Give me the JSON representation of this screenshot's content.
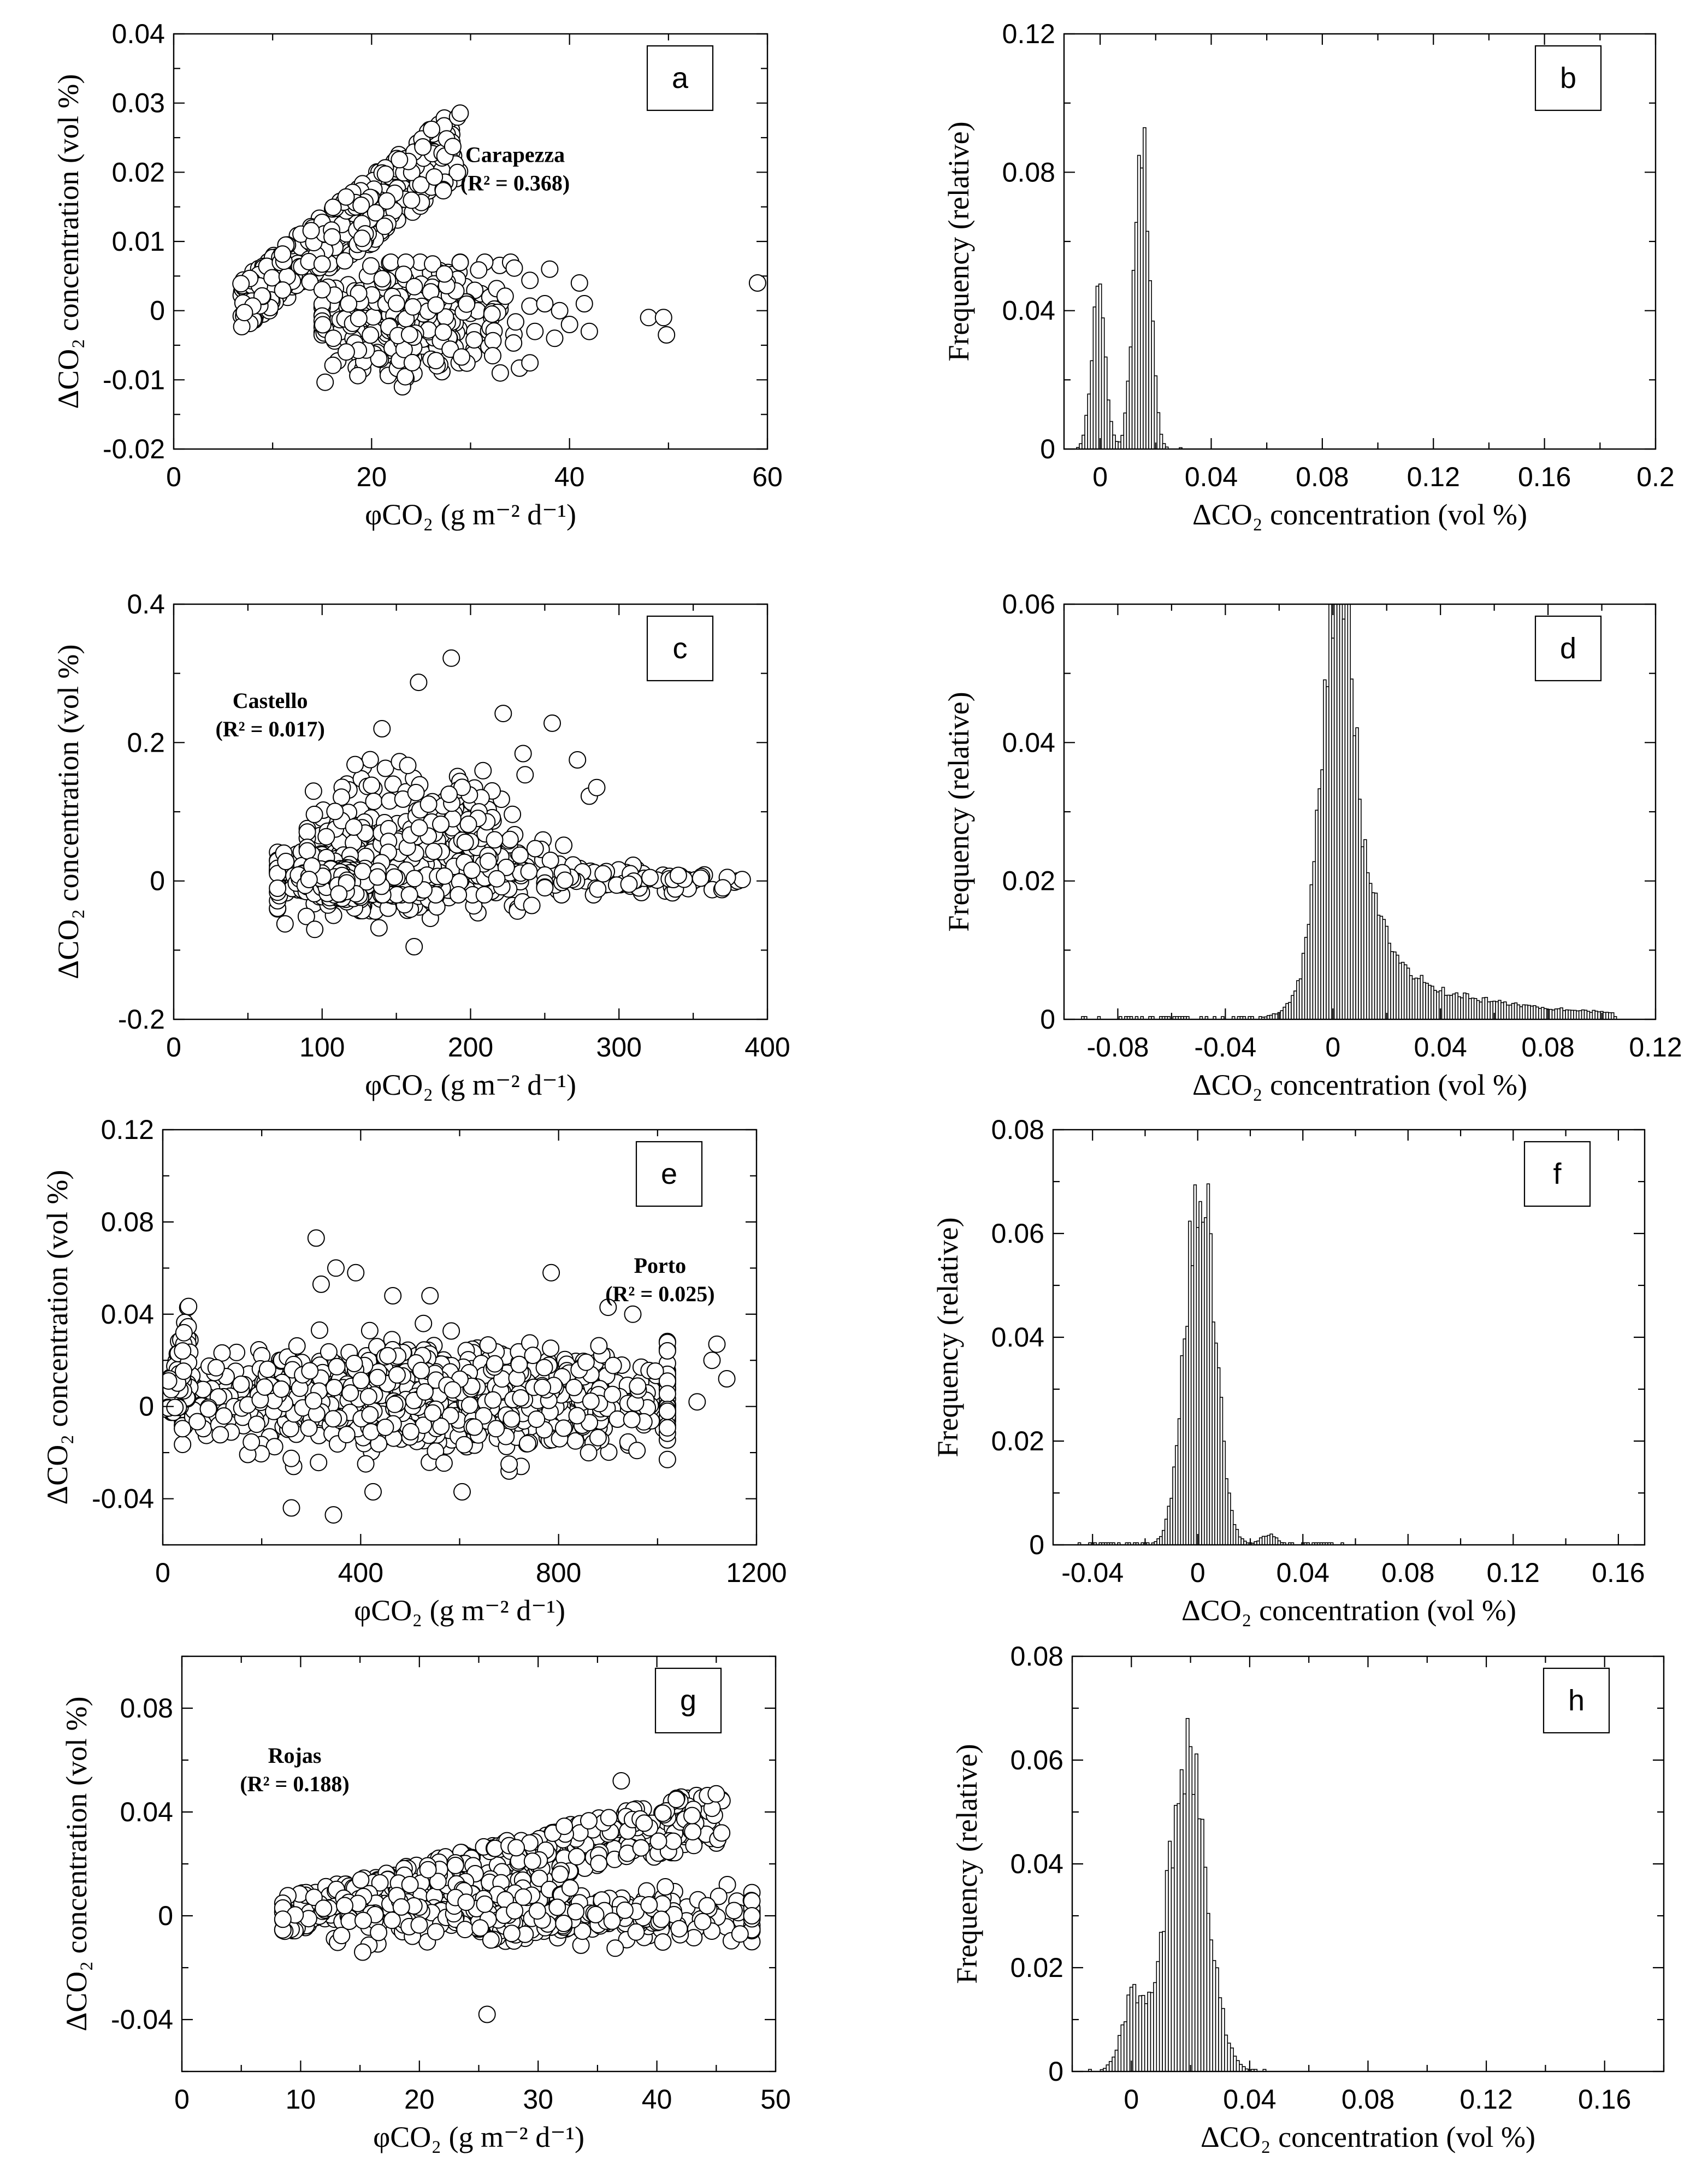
{
  "figure_colors": {
    "ink": "#000000",
    "marker_fill": "#ffffff",
    "bar_fill": "#ffffff"
  },
  "chart_data": [
    {
      "id": "a",
      "type": "scatter",
      "panel_label": "a",
      "xlabel": "φCO₂ (g m⁻² d⁻¹)",
      "ylabel": "ΔCO₂ concentration (vol %)",
      "xlim": [
        0,
        60
      ],
      "ylim": [
        -0.02,
        0.04
      ],
      "xticks": [
        0,
        20,
        40,
        60
      ],
      "xticklabels": [
        "0",
        "20",
        "40",
        "60"
      ],
      "yticks": [
        -0.02,
        -0.01,
        0,
        0.01,
        0.02,
        0.03,
        0.04
      ],
      "yticklabels": [
        "-0.02",
        "-0.01",
        "0",
        "0.01",
        "0.02",
        "0.03",
        "0.04"
      ],
      "xminor": 2,
      "yminor": 2,
      "annotation": {
        "site": "Carapezza",
        "r2": "(R² =  0.368)",
        "x": 34.5,
        "y": 0.0215
      },
      "clusters": [
        {
          "type": "band",
          "n": 360,
          "x0": 6.5,
          "x1": 29,
          "ylow0": -0.003,
          "ylow1": 0.018,
          "yhigh0": 0.004,
          "yhigh1": 0.03
        },
        {
          "type": "blob",
          "n": 330,
          "cx": 24,
          "cy": -0.001,
          "sx": 5,
          "sy": 0.004,
          "xmin": 15,
          "xmax": 36,
          "ymin": -0.011,
          "ymax": 0.007
        }
      ],
      "points": [
        [
          38,
          0.006
        ],
        [
          38.5,
          -0.004
        ],
        [
          39,
          0.0
        ],
        [
          40,
          -0.002
        ],
        [
          41,
          0.004
        ],
        [
          41.5,
          0.001
        ],
        [
          42,
          -0.003
        ],
        [
          48,
          -0.001
        ],
        [
          49.5,
          -0.001
        ],
        [
          49.8,
          -0.0035
        ],
        [
          59,
          0.004
        ],
        [
          33,
          -0.009
        ],
        [
          36.5,
          -0.003
        ],
        [
          37.5,
          0.001
        ]
      ]
    },
    {
      "id": "b",
      "type": "bar",
      "panel_label": "b",
      "xlabel": "ΔCO₂ concentration (vol %)",
      "ylabel": "Frequency (relative)",
      "xlim": [
        -0.013,
        0.2
      ],
      "ylim": [
        0,
        0.12
      ],
      "xticks": [
        0,
        0.04,
        0.08,
        0.12,
        0.16,
        0.2
      ],
      "xticklabels": [
        "0",
        "0.04",
        "0.08",
        "0.12",
        "0.16",
        "0.2"
      ],
      "yticks": [
        0,
        0.04,
        0.08,
        0.12
      ],
      "yticklabels": [
        "0",
        "0.04",
        "0.08",
        "0.12"
      ],
      "xminor": 2,
      "yminor": 2,
      "bin_width": 0.001,
      "peaks": [
        {
          "mu": -0.0005,
          "sigma": 0.0025,
          "amp": 0.044
        },
        {
          "mu": 0.015,
          "sigma": 0.0028,
          "amp": 0.095
        }
      ],
      "range": [
        -0.008,
        0.03
      ]
    },
    {
      "id": "c",
      "type": "scatter",
      "panel_label": "c",
      "xlabel": "φCO₂ (g m⁻² d⁻¹)",
      "ylabel": "ΔCO₂ concentration (vol %)",
      "xlim": [
        0,
        400
      ],
      "ylim": [
        -0.2,
        0.4
      ],
      "xticks": [
        0,
        100,
        200,
        300,
        400
      ],
      "xticklabels": [
        "0",
        "100",
        "200",
        "300",
        "400"
      ],
      "yticks": [
        -0.2,
        0,
        0.2,
        0.4
      ],
      "yticklabels": [
        "-0.2",
        "0",
        "0.2",
        "0.4"
      ],
      "xminor": 2,
      "yminor": 2,
      "annotation": {
        "site": "Castello",
        "r2": "(R² = 0.017)",
        "x": 65,
        "y": 0.25
      },
      "clusters": [
        {
          "type": "blob",
          "n": 500,
          "cx": 150,
          "cy": 0.01,
          "sx": 45,
          "sy": 0.025,
          "xmin": 70,
          "xmax": 300,
          "ymin": -0.07,
          "ymax": 0.08
        },
        {
          "type": "blob",
          "n": 260,
          "cx": 170,
          "cy": 0.06,
          "sx": 40,
          "sy": 0.05,
          "xmin": 90,
          "xmax": 280,
          "ymin": -0.02,
          "ymax": 0.22
        },
        {
          "type": "blob",
          "n": 200,
          "cx": 110,
          "cy": 0.0,
          "sx": 12,
          "sy": 0.012,
          "xmin": 80,
          "xmax": 140,
          "ymin": -0.03,
          "ymax": 0.04
        },
        {
          "type": "blob",
          "n": 90,
          "cx": 310,
          "cy": 0.0,
          "sx": 30,
          "sy": 0.008,
          "xmin": 250,
          "xmax": 385,
          "ymin": -0.02,
          "ymax": 0.03
        }
      ],
      "points": [
        [
          187,
          0.322
        ],
        [
          165,
          0.287
        ],
        [
          222,
          0.242
        ],
        [
          255,
          0.228
        ],
        [
          272,
          0.175
        ],
        [
          285,
          0.135
        ],
        [
          162,
          -0.095
        ],
        [
          75,
          -0.062
        ],
        [
          95,
          -0.07
        ],
        [
          380,
          0.0
        ],
        [
          383,
          0.002
        ],
        [
          373,
          0.005
        ],
        [
          370,
          -0.01
        ],
        [
          355,
          0.004
        ],
        [
          340,
          0.008
        ]
      ]
    },
    {
      "id": "d",
      "type": "bar",
      "panel_label": "d",
      "xlabel": "ΔCO₂ concentration (vol %)",
      "ylabel": "Frequency (relative)",
      "xlim": [
        -0.1,
        0.12
      ],
      "ylim": [
        0,
        0.06
      ],
      "xticks": [
        -0.08,
        -0.04,
        0,
        0.04,
        0.08,
        0.12
      ],
      "xticklabels": [
        "-0.08",
        "-0.04",
        "0",
        "0.04",
        "0.08",
        "0.12"
      ],
      "yticks": [
        0,
        0.02,
        0.04,
        0.06
      ],
      "yticklabels": [
        "0",
        "0.02",
        "0.04",
        "0.06"
      ],
      "xminor": 2,
      "yminor": 2,
      "bin_width": 0.001,
      "peaks": [
        {
          "mu": 0.001,
          "sigma": 0.0055,
          "amp": 0.052
        },
        {
          "mu": 0.006,
          "sigma": 0.012,
          "amp": 0.011
        }
      ],
      "tail": {
        "start": 0.004,
        "end": 0.105,
        "amp": 0.009,
        "decay": 0.045
      },
      "range": [
        -0.095,
        0.105
      ]
    },
    {
      "id": "e",
      "type": "scatter",
      "panel_label": "e",
      "xlabel": "φCO₂ (g m⁻² d⁻¹)",
      "ylabel": "ΔCO₂ concentration (vol %)",
      "xlim": [
        0,
        1200
      ],
      "ylim": [
        -0.06,
        0.12
      ],
      "xticks": [
        0,
        400,
        800,
        1200
      ],
      "xticklabels": [
        "0",
        "400",
        "800",
        "1200"
      ],
      "yticks": [
        -0.04,
        0,
        0.04,
        0.08,
        0.12
      ],
      "yticklabels": [
        "-0.04",
        "0",
        "0.04",
        "0.08",
        "0.12"
      ],
      "xminor": 2,
      "yminor": 2,
      "annotation": {
        "site": "Porto",
        "r2": "(R² = 0.025)",
        "x": 1005,
        "y": 0.058
      },
      "clusters": [
        {
          "type": "blob",
          "n": 1100,
          "cx": 520,
          "cy": 0.004,
          "sx": 260,
          "sy": 0.01,
          "xmin": 40,
          "xmax": 1020,
          "ymin": -0.026,
          "ymax": 0.036
        },
        {
          "type": "band",
          "n": 70,
          "x0": 3,
          "x1": 55,
          "ylow0": -0.004,
          "ylow1": 0.0,
          "yhigh0": 0.004,
          "yhigh1": 0.048
        }
      ],
      "points": [
        [
          310,
          0.073
        ],
        [
          350,
          0.06
        ],
        [
          390,
          0.058
        ],
        [
          320,
          0.053
        ],
        [
          785,
          0.058
        ],
        [
          900,
          0.043
        ],
        [
          950,
          0.04
        ],
        [
          1120,
          0.027
        ],
        [
          1140,
          0.012
        ],
        [
          1080,
          0.002
        ],
        [
          1110,
          0.02
        ],
        [
          260,
          -0.044
        ],
        [
          345,
          -0.047
        ],
        [
          425,
          -0.037
        ],
        [
          605,
          -0.037
        ],
        [
          700,
          -0.028
        ],
        [
          700,
          -0.025
        ],
        [
          540,
          0.048
        ],
        [
          465,
          0.048
        ]
      ]
    },
    {
      "id": "f",
      "type": "bar",
      "panel_label": "f",
      "xlabel": "ΔCO₂ concentration (vol %)",
      "ylabel": "Frequency (relative)",
      "xlim": [
        -0.055,
        0.17
      ],
      "ylim": [
        0,
        0.08
      ],
      "xticks": [
        -0.04,
        0,
        0.04,
        0.08,
        0.12,
        0.16
      ],
      "xticklabels": [
        "-0.04",
        "0",
        "0.04",
        "0.08",
        "0.12",
        "0.16"
      ],
      "yticks": [
        0,
        0.02,
        0.04,
        0.06,
        0.08
      ],
      "yticklabels": [
        "0",
        "0.02",
        "0.04",
        "0.06",
        "0.08"
      ],
      "xminor": 2,
      "yminor": 2,
      "bin_width": 0.001,
      "peaks": [
        {
          "mu": 0.001,
          "sigma": 0.0055,
          "amp": 0.072
        },
        {
          "mu": 0.027,
          "sigma": 0.003,
          "amp": 0.002
        }
      ],
      "range": [
        -0.045,
        0.055
      ]
    },
    {
      "id": "g",
      "type": "scatter",
      "panel_label": "g",
      "xlabel": "φCO₂ (g m⁻² d⁻¹)",
      "ylabel": "ΔCO₂ concentration (vol %)",
      "xlim": [
        0,
        50
      ],
      "ylim": [
        -0.06,
        0.1
      ],
      "xticks": [
        0,
        10,
        20,
        30,
        40,
        50
      ],
      "xticklabels": [
        "0",
        "10",
        "20",
        "30",
        "40",
        "50"
      ],
      "yticks": [
        -0.04,
        0,
        0.04,
        0.08
      ],
      "yticklabels": [
        "-0.04",
        "0",
        "0.04",
        "0.08"
      ],
      "xminor": 2,
      "yminor": 2,
      "annotation": {
        "site": "Rojas",
        "r2": "(R² = 0.188)",
        "x": 9.5,
        "y": 0.059
      },
      "clusters": [
        {
          "type": "band",
          "n": 480,
          "x0": 8.5,
          "x1": 45.5,
          "ylow0": -0.007,
          "ylow1": 0.028,
          "yhigh0": 0.007,
          "yhigh1": 0.05
        },
        {
          "type": "blob",
          "n": 420,
          "cx": 30,
          "cy": 0.0,
          "sx": 10,
          "sy": 0.0045,
          "xmin": 8.5,
          "xmax": 48,
          "ymin": -0.014,
          "ymax": 0.012
        }
      ],
      "points": [
        [
          25.7,
          -0.038
        ],
        [
          48,
          0.0
        ],
        [
          47,
          -0.007
        ],
        [
          46.5,
          0.002
        ],
        [
          37,
          0.052
        ],
        [
          45,
          0.047
        ]
      ]
    },
    {
      "id": "h",
      "type": "bar",
      "panel_label": "h",
      "xlabel": "ΔCO₂ concentration (vol %)",
      "ylabel": "Frequency (relative)",
      "xlim": [
        -0.02,
        0.18
      ],
      "ylim": [
        0,
        0.08
      ],
      "xticks": [
        0,
        0.04,
        0.08,
        0.12,
        0.16
      ],
      "xticklabels": [
        "0",
        "0.04",
        "0.08",
        "0.12",
        "0.16"
      ],
      "yticks": [
        0,
        0.02,
        0.04,
        0.06,
        0.08
      ],
      "yticklabels": [
        "0",
        "0.02",
        "0.04",
        "0.06",
        "0.08"
      ],
      "xminor": 2,
      "yminor": 2,
      "bin_width": 0.001,
      "peaks": [
        {
          "mu": 0.019,
          "sigma": 0.0065,
          "amp": 0.06
        },
        {
          "mu": 0.001,
          "sigma": 0.004,
          "amp": 0.014
        }
      ],
      "range": [
        -0.015,
        0.045
      ]
    }
  ]
}
